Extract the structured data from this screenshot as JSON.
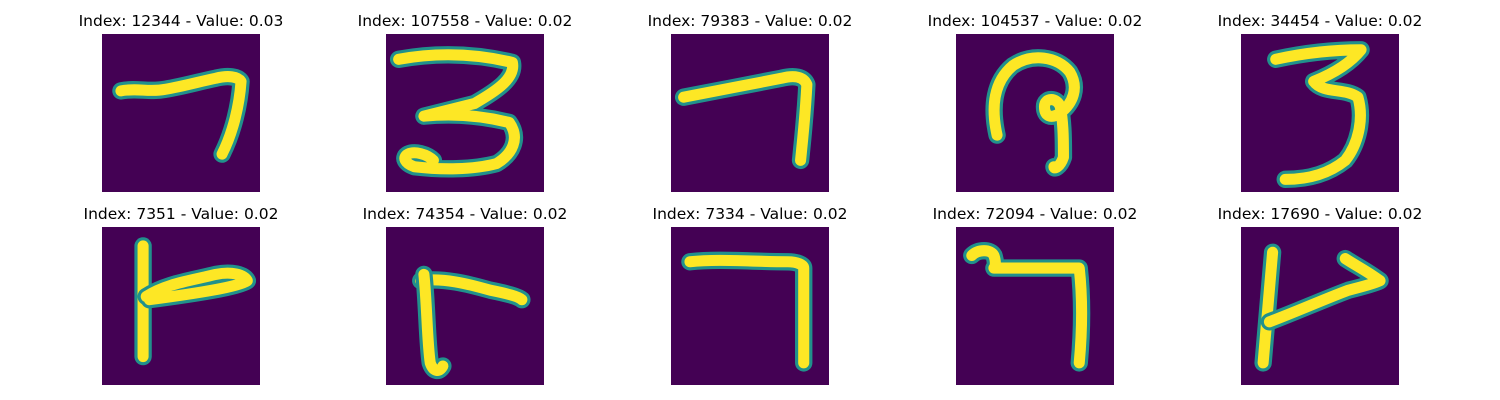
{
  "figure": {
    "colors": {
      "background": "#440154",
      "stroke_mid": "#21918c",
      "stroke_core": "#fde725"
    },
    "panels": [
      {
        "title": "Index: 12344 - Value: 0.03",
        "index": 12344,
        "value": 0.03,
        "glyph": "7"
      },
      {
        "title": "Index: 107558 - Value: 0.02",
        "index": 107558,
        "value": 0.02,
        "glyph": "3"
      },
      {
        "title": "Index: 79383 - Value: 0.02",
        "index": 79383,
        "value": 0.02,
        "glyph": "7"
      },
      {
        "title": "Index: 104537 - Value: 0.02",
        "index": 104537,
        "value": 0.02,
        "glyph": "?"
      },
      {
        "title": "Index: 34454 - Value: 0.02",
        "index": 34454,
        "value": 0.02,
        "glyph": "3"
      },
      {
        "title": "Index: 7351 - Value: 0.02",
        "index": 7351,
        "value": 0.02,
        "glyph": "r"
      },
      {
        "title": "Index: 74354 - Value: 0.02",
        "index": 74354,
        "value": 0.02,
        "glyph": "r"
      },
      {
        "title": "Index: 7334 - Value: 0.02",
        "index": 7334,
        "value": 0.02,
        "glyph": "7"
      },
      {
        "title": "Index: 72094 - Value: 0.02",
        "index": 72094,
        "value": 0.02,
        "glyph": "7"
      },
      {
        "title": "Index: 17690 - Value: 0.02",
        "index": 17690,
        "value": 0.02,
        "glyph": "r"
      }
    ]
  }
}
